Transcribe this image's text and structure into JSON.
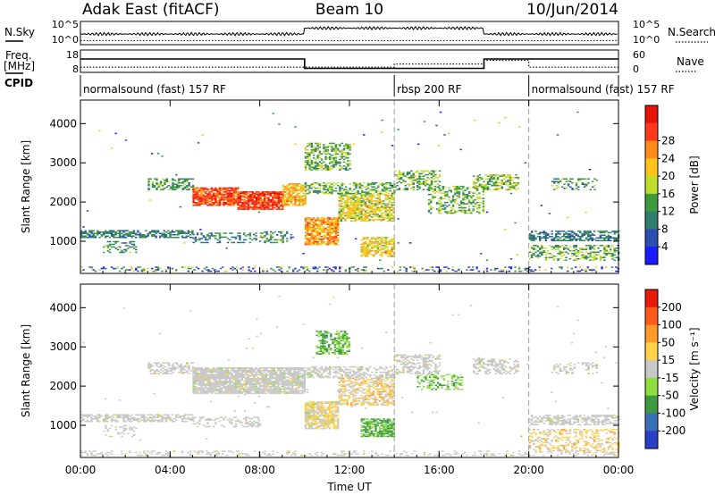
{
  "header": {
    "station": "Adak East (fitACF)",
    "beam": "Beam 10",
    "date": "10/Jun/2014"
  },
  "noise_panel": {
    "left_label": "N.Sky",
    "right_label": "N.Search",
    "left_ticks": [
      "10^5",
      "10^0"
    ],
    "right_ticks": [
      "10^5",
      "10^0"
    ],
    "sky_levels": [
      {
        "from": 0,
        "to": 10,
        "level": 0.45
      },
      {
        "from": 10,
        "to": 18,
        "level": 0.75
      },
      {
        "from": 18,
        "to": 24,
        "level": 0.45
      }
    ]
  },
  "freq_panel": {
    "left_label": "Freq.",
    "left_unit": "[MHz]",
    "right_label": "Nave",
    "left_ticks": [
      "18",
      "8"
    ],
    "right_ticks": [
      "60",
      "0"
    ],
    "freq_levels": [
      {
        "from": 0,
        "to": 10,
        "level": 0.62
      },
      {
        "from": 10,
        "to": 18,
        "level": 0.12
      },
      {
        "from": 18,
        "to": 24,
        "level": 0.62
      }
    ],
    "nave_levels": [
      {
        "from": 0,
        "to": 14,
        "level": 0.18
      },
      {
        "from": 14,
        "to": 18,
        "level": 0.35
      },
      {
        "from": 18,
        "to": 20,
        "level": 0.55
      },
      {
        "from": 20,
        "to": 24,
        "level": 0.18
      }
    ]
  },
  "cpid": {
    "label": "CPID",
    "segments": [
      {
        "text": "normalsound (fast) 157 RF",
        "start": 0,
        "end": 14
      },
      {
        "text": "rbsp 200 RF",
        "start": 14,
        "end": 20
      },
      {
        "text": "normalsound (fast) 157 RF",
        "start": 20,
        "end": 24
      }
    ]
  },
  "chart_data": [
    {
      "type": "heatmap",
      "title": "Power",
      "ylabel": "Slant Range [km]",
      "xlabel": "Time UT",
      "xlim": [
        0,
        24
      ],
      "ylim": [
        180,
        4600
      ],
      "xticks": [
        "00:00",
        "04:00",
        "08:00",
        "12:00",
        "16:00",
        "20:00",
        "00:00"
      ],
      "yticks": [
        1000,
        2000,
        3000,
        4000
      ],
      "dashed_times": [
        14,
        20
      ],
      "colorbar": {
        "label": "Power [dB]",
        "ticks": [
          "4",
          "8",
          "12",
          "16",
          "20",
          "24",
          "28"
        ],
        "colors": [
          "#1a1aff",
          "#2a4fb0",
          "#2f7e6e",
          "#3c9a3c",
          "#bede2c",
          "#ffc41a",
          "#ff8c1a",
          "#ff3a1a",
          "#e8140a"
        ]
      },
      "scatter_echoes": [
        {
          "t0": 0.0,
          "t1": 24.0,
          "r0": 220,
          "r1": 330,
          "intensity": 0.2,
          "density": 0.25
        },
        {
          "t0": 0.0,
          "t1": 24.0,
          "r0": 500,
          "r1": 4300,
          "intensity": 0.25,
          "density": 0.003
        }
      ],
      "regions": [
        {
          "t0": 0.0,
          "t1": 5.0,
          "r0": 1080,
          "r1": 1280,
          "intensity": 0.25,
          "density": 0.6
        },
        {
          "t0": 1.0,
          "t1": 2.5,
          "r0": 700,
          "r1": 1000,
          "intensity": 0.3,
          "density": 0.3
        },
        {
          "t0": 5.0,
          "t1": 8.0,
          "r0": 950,
          "r1": 1200,
          "intensity": 0.25,
          "density": 0.35
        },
        {
          "t0": 3.0,
          "t1": 5.0,
          "r0": 2300,
          "r1": 2600,
          "intensity": 0.35,
          "density": 0.5
        },
        {
          "t0": 5.0,
          "t1": 7.0,
          "r0": 1900,
          "r1": 2350,
          "intensity": 0.85,
          "density": 0.85
        },
        {
          "t0": 7.0,
          "t1": 9.0,
          "r0": 1800,
          "r1": 2250,
          "intensity": 0.9,
          "density": 0.85
        },
        {
          "t0": 9.0,
          "t1": 10.0,
          "r0": 1900,
          "r1": 2450,
          "intensity": 0.65,
          "density": 0.8
        },
        {
          "t0": 8.0,
          "t1": 9.5,
          "r0": 950,
          "r1": 1250,
          "intensity": 0.3,
          "density": 0.4
        },
        {
          "t0": 10.0,
          "t1": 12.0,
          "r0": 2800,
          "r1": 3500,
          "intensity": 0.4,
          "density": 0.55
        },
        {
          "t0": 10.0,
          "t1": 11.5,
          "r0": 900,
          "r1": 1600,
          "intensity": 0.7,
          "density": 0.8
        },
        {
          "t0": 11.5,
          "t1": 14.0,
          "r0": 1500,
          "r1": 2200,
          "intensity": 0.55,
          "density": 0.7
        },
        {
          "t0": 10.0,
          "t1": 14.0,
          "r0": 2200,
          "r1": 2500,
          "intensity": 0.4,
          "density": 0.5
        },
        {
          "t0": 12.5,
          "t1": 14.0,
          "r0": 600,
          "r1": 1100,
          "intensity": 0.6,
          "density": 0.7
        },
        {
          "t0": 14.0,
          "t1": 16.0,
          "r0": 2300,
          "r1": 2800,
          "intensity": 0.4,
          "density": 0.5
        },
        {
          "t0": 15.5,
          "t1": 18.0,
          "r0": 1700,
          "r1": 2400,
          "intensity": 0.4,
          "density": 0.45
        },
        {
          "t0": 17.5,
          "t1": 19.5,
          "r0": 2300,
          "r1": 2700,
          "intensity": 0.45,
          "density": 0.5
        },
        {
          "t0": 20.0,
          "t1": 24.0,
          "r0": 1000,
          "r1": 1250,
          "intensity": 0.25,
          "density": 0.55
        },
        {
          "t0": 20.0,
          "t1": 24.0,
          "r0": 500,
          "r1": 900,
          "intensity": 0.4,
          "density": 0.4
        },
        {
          "t0": 21.0,
          "t1": 23.0,
          "r0": 2300,
          "r1": 2600,
          "intensity": 0.3,
          "density": 0.3
        }
      ]
    },
    {
      "type": "heatmap",
      "title": "Velocity",
      "ylabel": "Slant Range [km]",
      "xlabel": "Time UT",
      "xlim": [
        0,
        24
      ],
      "ylim": [
        180,
        4600
      ],
      "xticks": [
        "00:00",
        "04:00",
        "08:00",
        "12:00",
        "16:00",
        "20:00",
        "00:00"
      ],
      "yticks": [
        1000,
        2000,
        3000,
        4000
      ],
      "dashed_times": [
        14,
        20
      ],
      "colorbar": {
        "label": "Velocity [m s⁻¹]",
        "ticks": [
          "200",
          "100",
          "50",
          "15",
          "-15",
          "-50",
          "-100",
          "-200"
        ],
        "colors": [
          "#2a3fc8",
          "#3a70b8",
          "#3e9a3e",
          "#8ede3e",
          "#c8c8c8",
          "#ffd24a",
          "#ff9a2a",
          "#ff5a1a",
          "#e81a0a"
        ]
      },
      "scatter_echoes": [
        {
          "t0": 0.0,
          "t1": 24.0,
          "r0": 220,
          "r1": 330,
          "intensity": 0.5,
          "density": 0.25
        },
        {
          "t0": 0.0,
          "t1": 24.0,
          "r0": 500,
          "r1": 4300,
          "intensity": 0.5,
          "density": 0.003
        }
      ],
      "regions": [
        {
          "t0": 0.0,
          "t1": 5.0,
          "r0": 1080,
          "r1": 1280,
          "intensity": 0.5,
          "density": 0.6
        },
        {
          "t0": 1.0,
          "t1": 2.5,
          "r0": 700,
          "r1": 1000,
          "intensity": 0.5,
          "density": 0.3
        },
        {
          "t0": 5.0,
          "t1": 8.0,
          "r0": 950,
          "r1": 1200,
          "intensity": 0.5,
          "density": 0.35
        },
        {
          "t0": 3.0,
          "t1": 5.0,
          "r0": 2300,
          "r1": 2600,
          "intensity": 0.5,
          "density": 0.5
        },
        {
          "t0": 5.0,
          "t1": 10.0,
          "r0": 1800,
          "r1": 2450,
          "intensity": 0.5,
          "density": 0.85
        },
        {
          "t0": 10.0,
          "t1": 11.5,
          "r0": 900,
          "r1": 1600,
          "intensity": 0.55,
          "density": 0.8
        },
        {
          "t0": 10.5,
          "t1": 12.0,
          "r0": 2800,
          "r1": 3400,
          "intensity": 0.3,
          "density": 0.55
        },
        {
          "t0": 11.5,
          "t1": 14.0,
          "r0": 1500,
          "r1": 2200,
          "intensity": 0.6,
          "density": 0.6
        },
        {
          "t0": 10.0,
          "t1": 14.0,
          "r0": 2200,
          "r1": 2500,
          "intensity": 0.5,
          "density": 0.5
        },
        {
          "t0": 12.5,
          "t1": 14.0,
          "r0": 700,
          "r1": 1150,
          "intensity": 0.3,
          "density": 0.75
        },
        {
          "t0": 14.0,
          "t1": 16.0,
          "r0": 2300,
          "r1": 2800,
          "intensity": 0.5,
          "density": 0.5
        },
        {
          "t0": 15.0,
          "t1": 17.0,
          "r0": 1900,
          "r1": 2300,
          "intensity": 0.35,
          "density": 0.45
        },
        {
          "t0": 17.5,
          "t1": 19.5,
          "r0": 2300,
          "r1": 2700,
          "intensity": 0.5,
          "density": 0.5
        },
        {
          "t0": 20.0,
          "t1": 24.0,
          "r0": 1000,
          "r1": 1250,
          "intensity": 0.5,
          "density": 0.55
        },
        {
          "t0": 20.0,
          "t1": 24.0,
          "r0": 300,
          "r1": 900,
          "intensity": 0.6,
          "density": 0.35
        },
        {
          "t0": 21.0,
          "t1": 23.0,
          "r0": 2300,
          "r1": 2600,
          "intensity": 0.5,
          "density": 0.3
        }
      ]
    }
  ]
}
